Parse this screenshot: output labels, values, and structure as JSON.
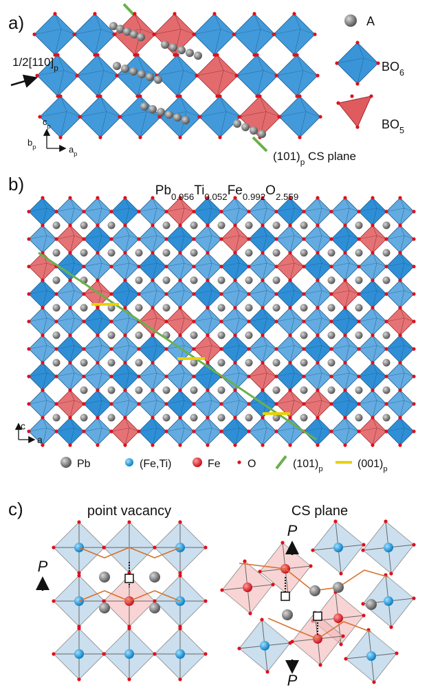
{
  "panels": {
    "a": {
      "label": "a)",
      "shift": {
        "main": "1/2[110]",
        "sub": "p"
      },
      "legend": [
        {
          "main": "A"
        },
        {
          "main": "BO",
          "sub": "6"
        },
        {
          "main": "BO",
          "sub": "5"
        }
      ],
      "axes": [
        {
          "main": "c",
          "sub": "p"
        },
        {
          "main": "b",
          "sub": "p"
        },
        {
          "main": "a",
          "sub": "p"
        }
      ],
      "cs_plane": {
        "main": "(101)",
        "sub": "p",
        "tail": " CS plane"
      }
    },
    "b": {
      "label": "b)",
      "formula": [
        {
          "main": "Pb",
          "sub": "0.956"
        },
        {
          "main": "Ti",
          "sub": "0.052"
        },
        {
          "main": "Fe",
          "sub": "0.992"
        },
        {
          "main": "O",
          "sub": "2.559"
        }
      ],
      "axes": [
        "c",
        "a"
      ],
      "legend": [
        {
          "main": "Pb"
        },
        {
          "main": "(Fe,Ti)"
        },
        {
          "main": "Fe"
        },
        {
          "main": "O"
        },
        {
          "main": "(101)",
          "sub": "p"
        },
        {
          "main": "(001)",
          "sub": "p"
        }
      ]
    },
    "c": {
      "label": "c)",
      "left_title": "point vacancy",
      "right_title": "CS plane",
      "polarization": "P"
    }
  }
}
